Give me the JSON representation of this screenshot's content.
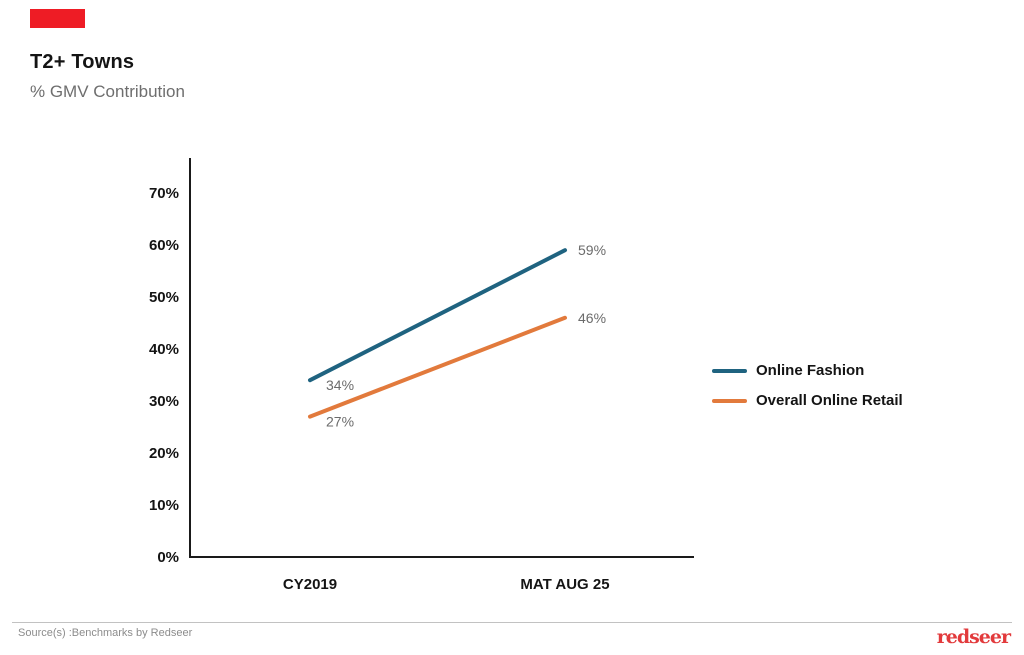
{
  "chart_data": {
    "type": "line",
    "title": "T2+ Towns",
    "subtitle": "% GMV Contribution",
    "categories": [
      "CY2019",
      "MAT AUG 25"
    ],
    "series": [
      {
        "name": "Online Fashion",
        "color": "#1F6380",
        "values": [
          34,
          59
        ],
        "data_labels": [
          "34%",
          "59%"
        ]
      },
      {
        "name": "Overall Online Retail",
        "color": "#E27A3C",
        "values": [
          27,
          46
        ],
        "data_labels": [
          "27%",
          "46%"
        ]
      }
    ],
    "ylim": [
      0,
      70
    ],
    "ytick_step": 10,
    "ytick_labels": [
      "0%",
      "10%",
      "20%",
      "30%",
      "40%",
      "50%",
      "60%",
      "70%"
    ],
    "grid": false,
    "legend_position": "right",
    "data_labels_shown": true
  },
  "footer": {
    "source": "Source(s) :Benchmarks by Redseer",
    "logo_text": "redseer"
  },
  "colors": {
    "accent_bar": "#EE1C25",
    "axis": "#1A1A1A",
    "tick_text": "#141414",
    "data_label": "#6B6B6B",
    "subtitle_text": "#6E6E6E",
    "source_text": "#8C8C8C",
    "divider": "#C2C2C2",
    "logo_red": "#E23A3C",
    "series_teal": "#1F6380",
    "series_orange": "#E27A3C"
  }
}
